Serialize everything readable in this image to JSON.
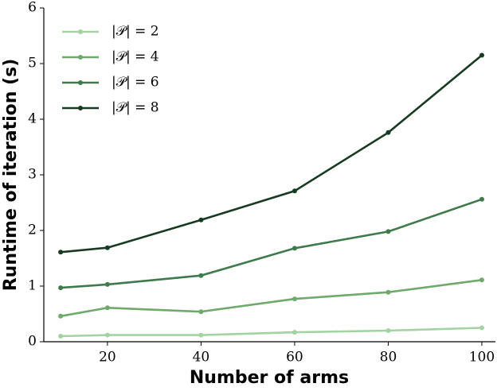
{
  "chart_data": {
    "type": "line",
    "x_label": "Number of arms",
    "y_label": "Runtime of iteration (s)",
    "x": [
      10,
      20,
      40,
      60,
      80,
      100
    ],
    "series": [
      {
        "name": "|𝒫| = 2",
        "color": "#a3d3a0",
        "values": [
          0.1,
          0.12,
          0.12,
          0.17,
          0.2,
          0.25
        ]
      },
      {
        "name": "|𝒫| = 4",
        "color": "#6fa96c",
        "values": [
          0.46,
          0.61,
          0.54,
          0.77,
          0.89,
          1.11
        ]
      },
      {
        "name": "|𝒫| = 6",
        "color": "#3f7a4d",
        "values": [
          0.97,
          1.03,
          1.19,
          1.68,
          1.98,
          2.56
        ]
      },
      {
        "name": "|𝒫| = 8",
        "color": "#183a22",
        "values": [
          1.61,
          1.69,
          2.19,
          2.71,
          3.76,
          5.15
        ]
      }
    ],
    "xlim": [
      6.4,
      102.9
    ],
    "ylim": [
      0,
      6
    ],
    "xticks": [
      20,
      40,
      60,
      80,
      100
    ],
    "yticks": [
      0,
      1,
      2,
      3,
      4,
      5,
      6
    ],
    "legend": "upper-left"
  }
}
